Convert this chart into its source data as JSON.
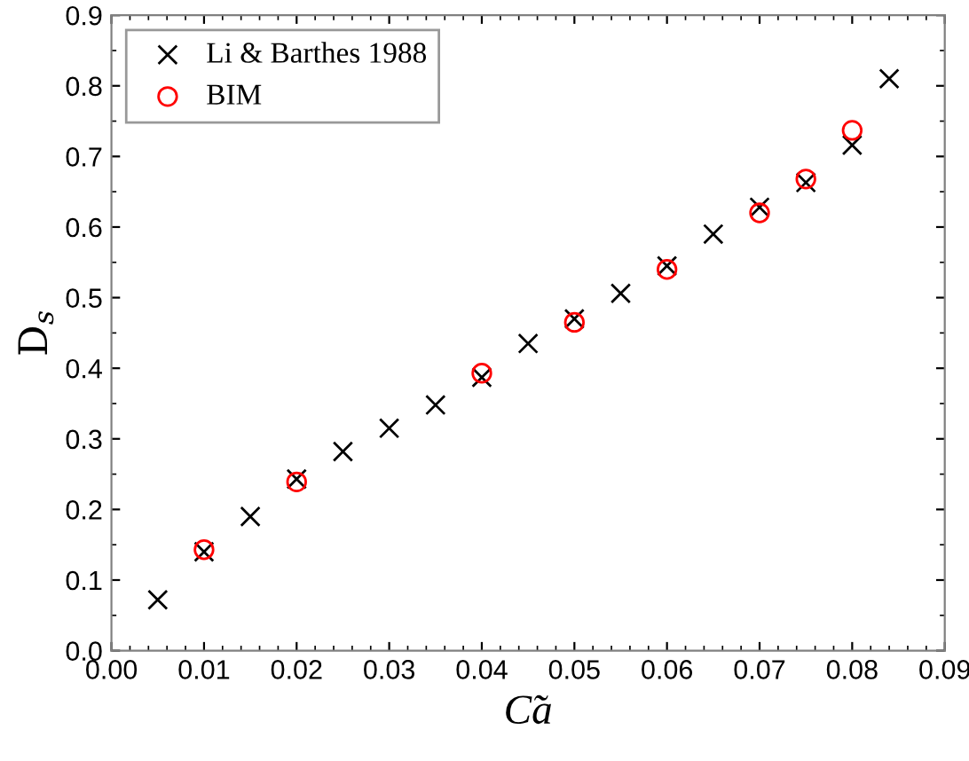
{
  "chart_data": {
    "type": "scatter",
    "xlabel": "C̃a",
    "ylabel": "D$_{s}$",
    "xlim": [
      0,
      0.09
    ],
    "ylim": [
      0,
      0.9
    ],
    "xticks": [
      {
        "value": 0,
        "label": "0.00"
      },
      {
        "value": 0.01,
        "label": "0.01"
      },
      {
        "value": 0.02,
        "label": "0.02"
      },
      {
        "value": 0.03,
        "label": "0.03"
      },
      {
        "value": 0.04,
        "label": "0.04"
      },
      {
        "value": 0.05,
        "label": "0.05"
      },
      {
        "value": 0.06,
        "label": "0.06"
      },
      {
        "value": 0.07,
        "label": "0.07"
      },
      {
        "value": 0.08,
        "label": "0.08"
      },
      {
        "value": 0.09,
        "label": "0.09"
      }
    ],
    "yticks": [
      {
        "value": 0,
        "label": "0.0"
      },
      0.1,
      0.2,
      0.3,
      0.4,
      0.5,
      0.6,
      0.7,
      0.8,
      0.9
    ],
    "legend": "top left",
    "grid": false,
    "series": [
      {
        "name": "Li & Barthes 1988",
        "color": "#000000",
        "marker": "cross",
        "x": [
          0.005,
          0.01,
          0.015,
          0.02,
          0.025,
          0.03,
          0.035,
          0.04,
          0.045,
          0.05,
          0.055,
          0.06,
          0.065,
          0.07,
          0.075,
          0.08,
          0.084
        ],
        "values": [
          0.072,
          0.14,
          0.19,
          0.243,
          0.282,
          0.315,
          0.348,
          0.387,
          0.435,
          0.47,
          0.506,
          0.545,
          0.59,
          0.628,
          0.663,
          0.716,
          0.81
        ]
      },
      {
        "name": "BIM",
        "color": "#ff0000",
        "marker": "circle",
        "x": [
          0.01,
          0.02,
          0.04,
          0.05,
          0.06,
          0.07,
          0.075,
          0.08
        ],
        "values": [
          0.143,
          0.239,
          0.393,
          0.465,
          0.54,
          0.62,
          0.668,
          0.737
        ]
      }
    ]
  }
}
